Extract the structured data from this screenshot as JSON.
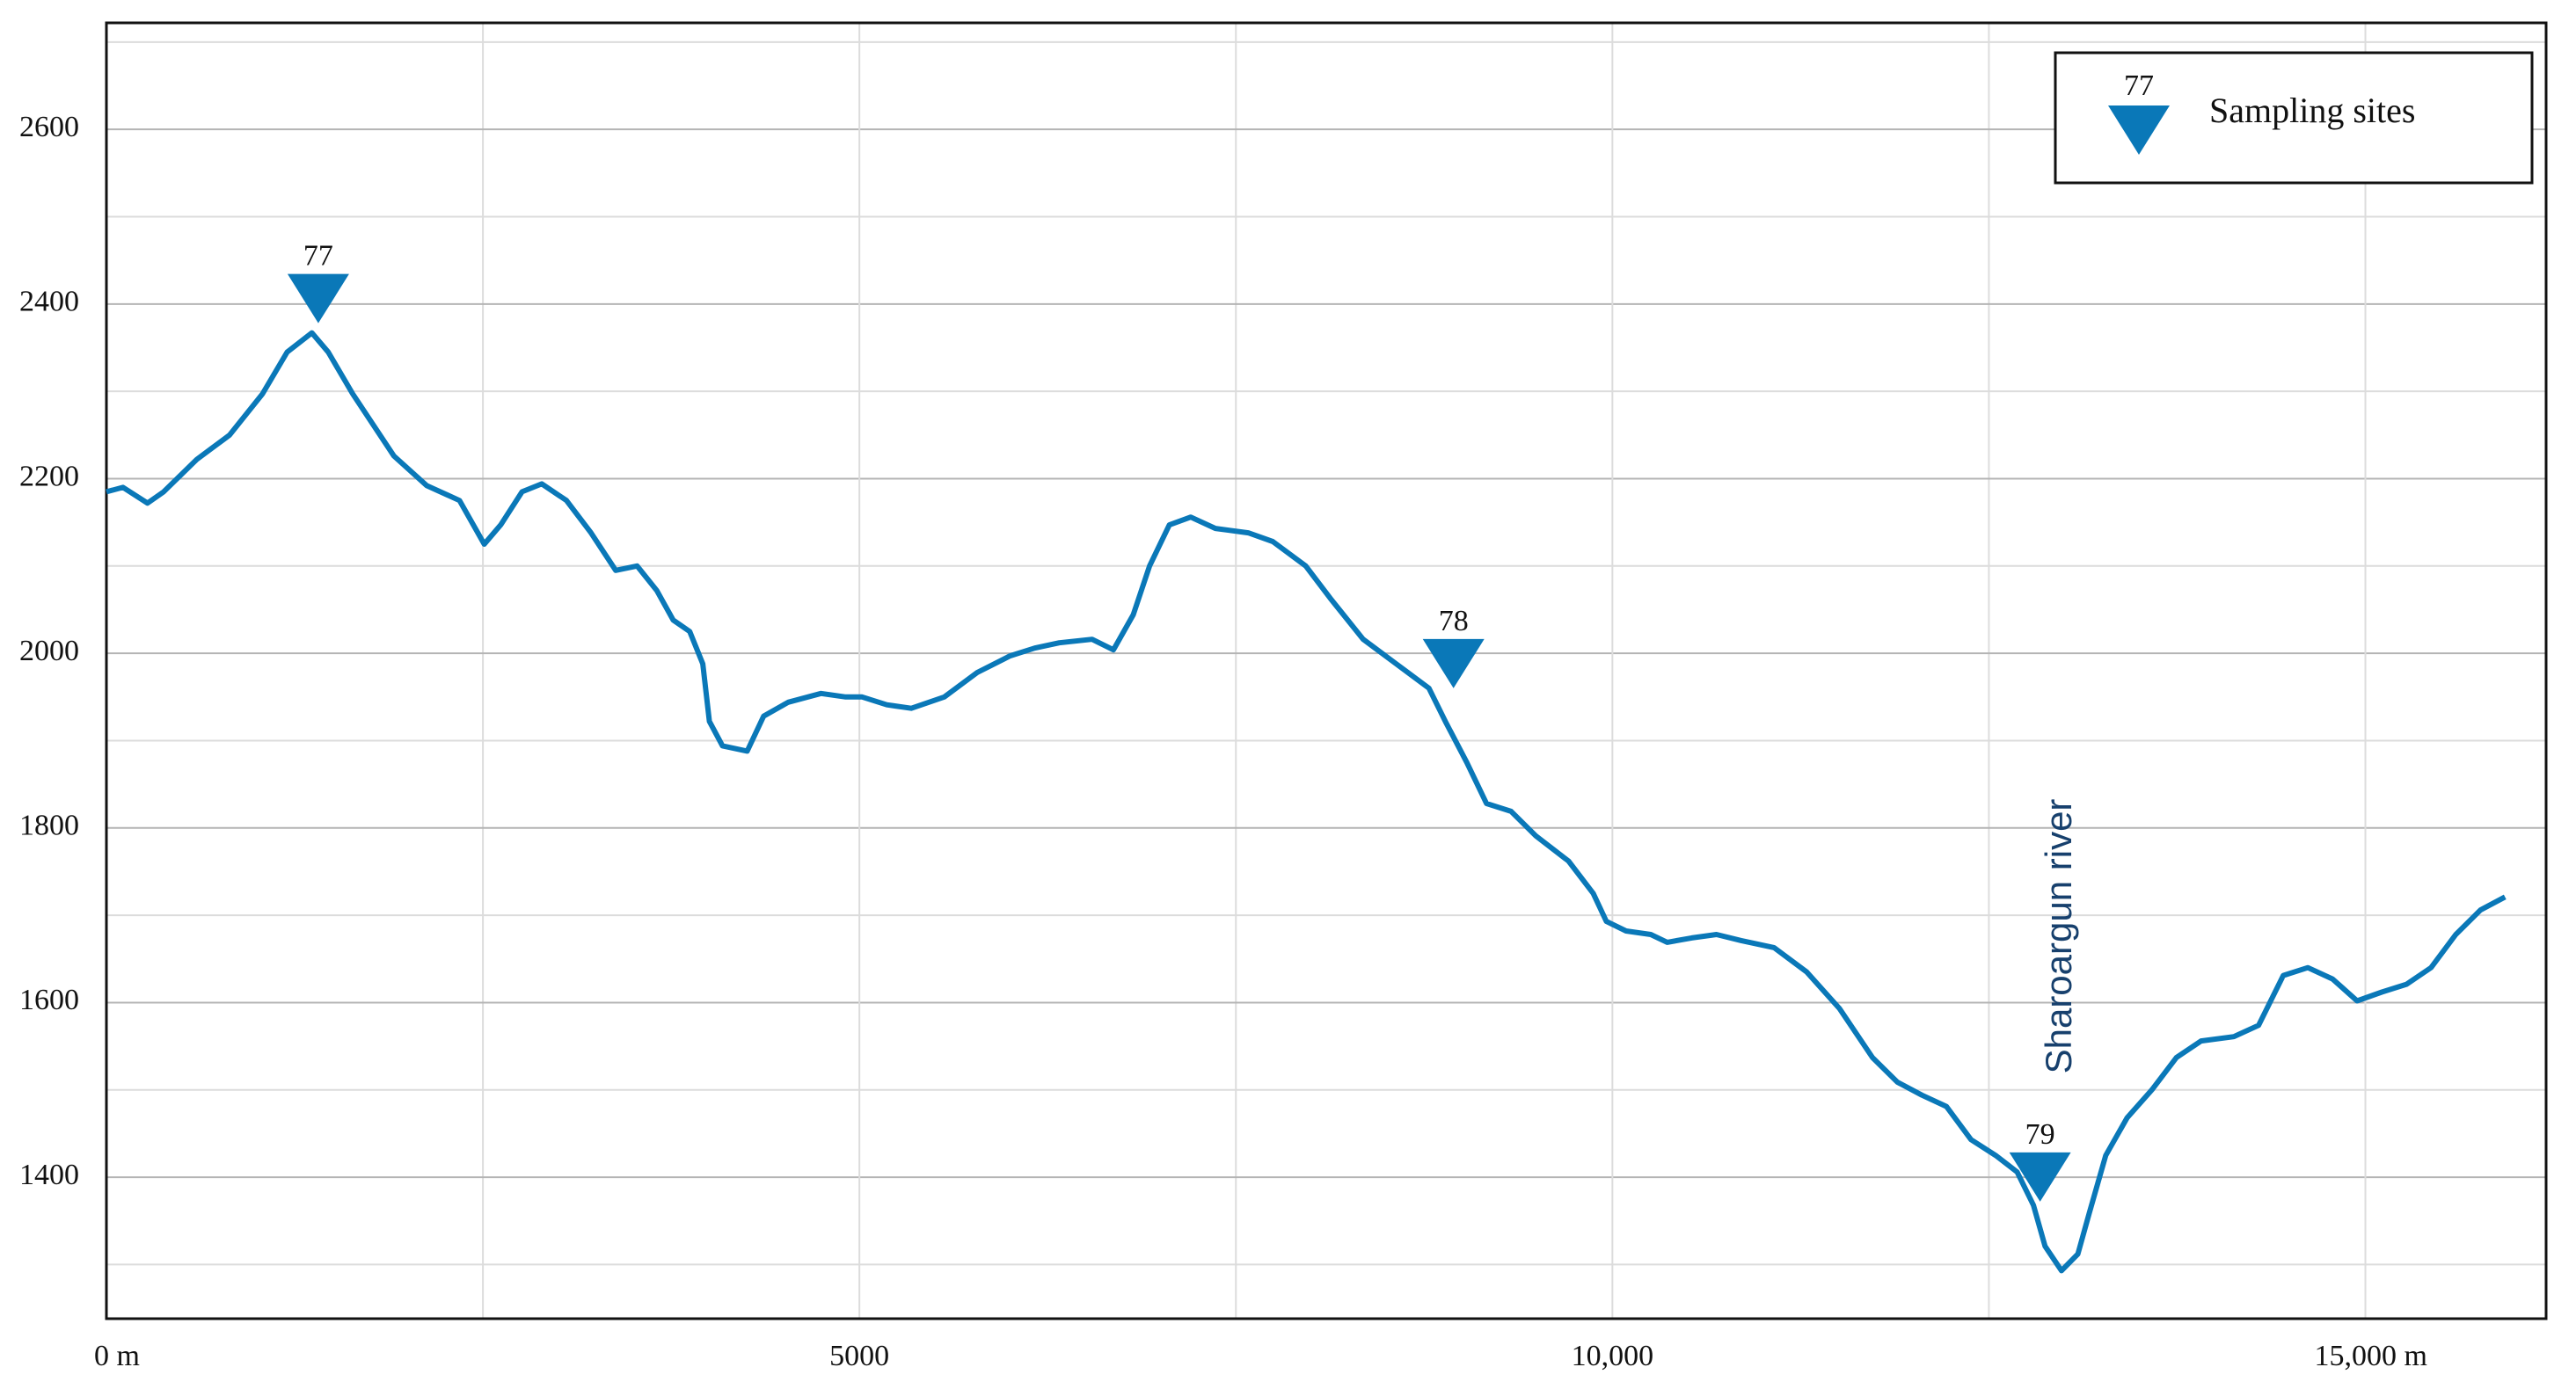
{
  "chart_data": {
    "type": "line",
    "color": "#0a78b8",
    "x": [
      0,
      110,
      273,
      380,
      600,
      818,
      1036,
      1200,
      1364,
      1473,
      1636,
      1909,
      2127,
      2345,
      2509,
      2618,
      2760,
      2891,
      3055,
      3218,
      3382,
      3524,
      3654,
      3764,
      3873,
      3960,
      4004,
      4091,
      4255,
      4364,
      4527,
      4745,
      4909,
      5018,
      5182,
      5345,
      5564,
      5782,
      6000,
      6164,
      6327,
      6545,
      6687,
      6818,
      6927,
      7058,
      7200,
      7364,
      7582,
      7745,
      7964,
      8127,
      8345,
      8564,
      8782,
      8891,
      9033,
      9164,
      9327,
      9491,
      9709,
      9873,
      9960,
      10091,
      10255,
      10364,
      10527,
      10691,
      10855,
      11073,
      11291,
      11509,
      11727,
      11891,
      12055,
      12218,
      12382,
      12545,
      12687,
      12796,
      12873,
      12982,
      13091,
      13167,
      13276,
      13418,
      13582,
      13745,
      13909,
      14127,
      14291,
      14455,
      14618,
      14782,
      14945,
      15109,
      15273,
      15436,
      15600,
      15764,
      15927
    ],
    "values": [
      2185,
      2190,
      2172,
      2185,
      2222,
      2250,
      2297,
      2345,
      2367,
      2345,
      2297,
      2226,
      2192,
      2175,
      2125,
      2147,
      2185,
      2194,
      2175,
      2138,
      2095,
      2100,
      2072,
      2038,
      2025,
      1988,
      1922,
      1894,
      1888,
      1928,
      1944,
      1954,
      1950,
      1950,
      1941,
      1937,
      1950,
      1978,
      1997,
      2006,
      2012,
      2016,
      2004,
      2044,
      2100,
      2147,
      2156,
      2143,
      2138,
      2128,
      2100,
      2063,
      2016,
      1988,
      1960,
      1922,
      1875,
      1828,
      1819,
      1791,
      1762,
      1725,
      1693,
      1682,
      1678,
      1669,
      1674,
      1678,
      1671,
      1663,
      1635,
      1593,
      1537,
      1509,
      1494,
      1481,
      1443,
      1425,
      1406,
      1368,
      1321,
      1293,
      1312,
      1359,
      1425,
      1468,
      1500,
      1537,
      1556,
      1561,
      1574,
      1631,
      1640,
      1627,
      1602,
      1612,
      1621,
      1640,
      1678,
      1706,
      1721
    ],
    "sites": {
      "name": "Sampling sites",
      "color": "#0a78b8",
      "x": [
        1407,
        8945,
        12840
      ],
      "values": [
        2378,
        1960,
        1372
      ],
      "labels": [
        "77",
        "78",
        "79"
      ]
    },
    "legend": {
      "corner": "top-right",
      "sample_label": "77"
    },
    "annotation": "Sharoargun river",
    "xlim": [
      0,
      16200
    ],
    "ylim": [
      1238,
      2722
    ],
    "xticks": [
      {
        "value": 0,
        "label": "0 m"
      },
      5000,
      {
        "value": 10000,
        "label": "10,000"
      },
      {
        "value": 15000,
        "label": "15,000 m"
      }
    ],
    "yticks": [
      1400,
      1600,
      1800,
      2000,
      2200,
      2400,
      2600
    ],
    "x_minor_grid": [
      2500,
      7500,
      12500
    ],
    "y_minor_grid": [
      1300,
      1500,
      1700,
      1900,
      2100,
      2300,
      2500,
      2700
    ],
    "grid": true
  }
}
